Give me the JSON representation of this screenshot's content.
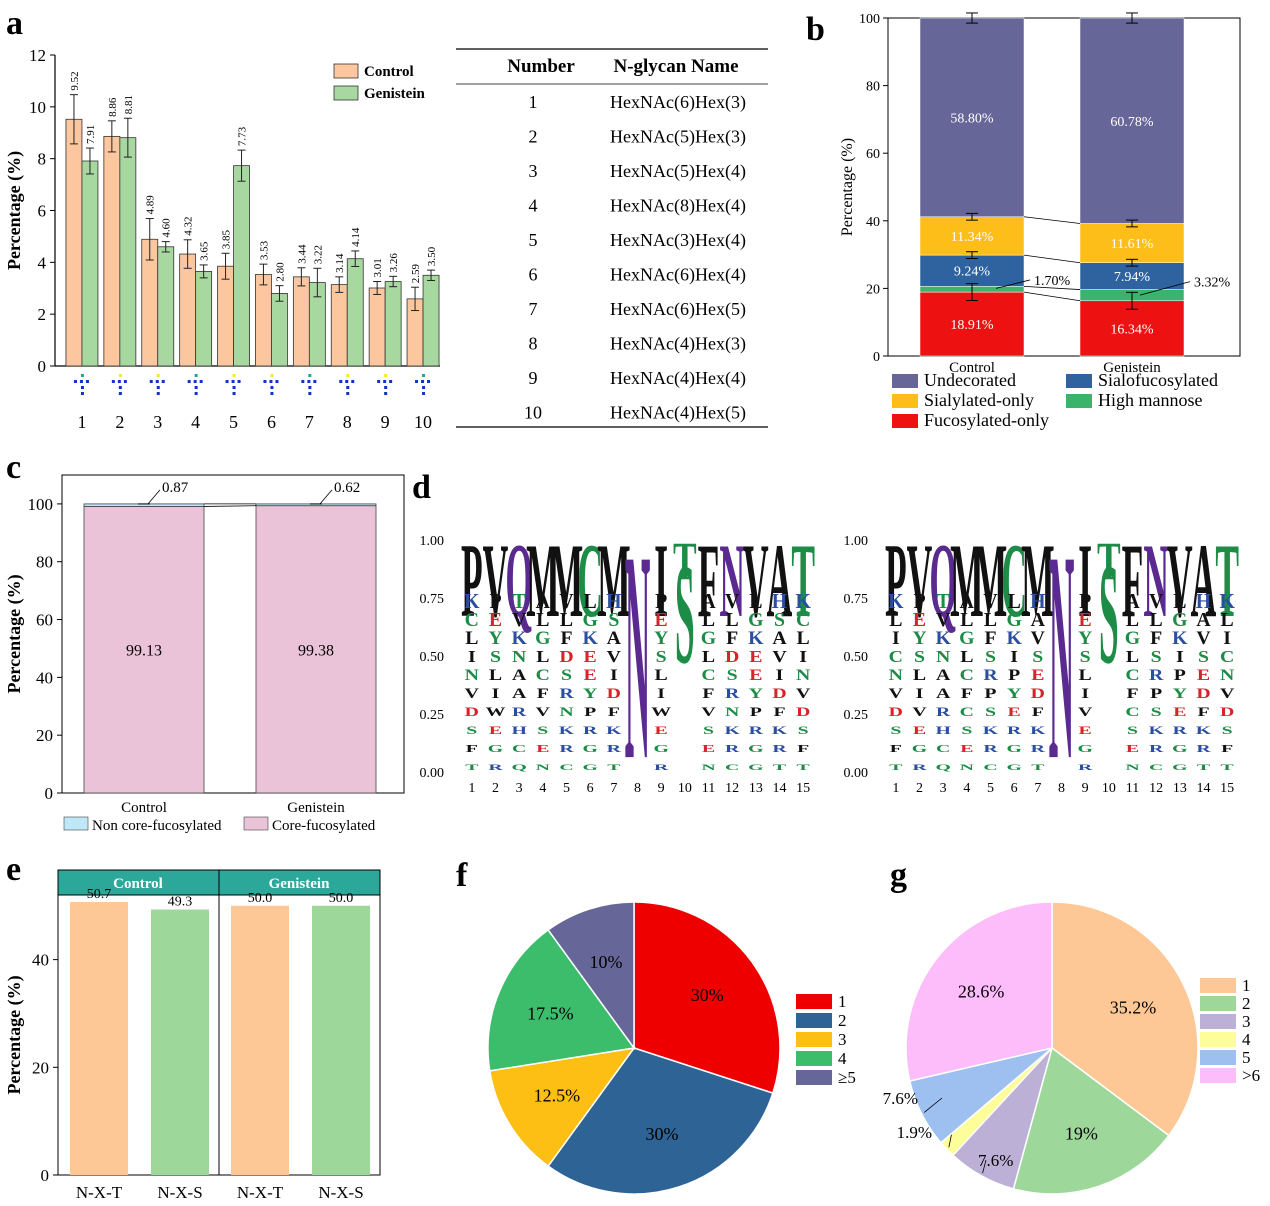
{
  "panel_letters": [
    "a",
    "b",
    "c",
    "d",
    "e",
    "f",
    "g"
  ],
  "chart_data": [
    {
      "id": "a",
      "type": "bar",
      "title": "",
      "ylabel": "Percentage (%)",
      "xlabel": "",
      "ylim": [
        0,
        12
      ],
      "yticks": [
        0,
        2,
        4,
        6,
        8,
        10,
        12
      ],
      "categories": [
        "1",
        "2",
        "3",
        "4",
        "5",
        "6",
        "7",
        "8",
        "9",
        "10"
      ],
      "series": [
        {
          "name": "Control",
          "color": "#FCC79E",
          "values": [
            9.52,
            8.86,
            4.89,
            4.32,
            3.85,
            3.53,
            3.44,
            3.14,
            3.01,
            2.59
          ],
          "labels": [
            "9.52",
            "8.86",
            "4.89",
            "4.32",
            "3.85",
            "3.53",
            "3.44",
            "3.14",
            "3.01",
            "2.59"
          ],
          "errors": [
            0.95,
            0.6,
            0.8,
            0.55,
            0.5,
            0.4,
            0.35,
            0.3,
            0.25,
            0.45
          ]
        },
        {
          "name": "Genistein",
          "color": "#A7D8A0",
          "values": [
            7.91,
            8.81,
            4.6,
            3.65,
            7.73,
            2.8,
            3.22,
            4.14,
            3.26,
            3.5
          ],
          "labels": [
            "7.91",
            "8.81",
            "4.60",
            "3.65",
            "7.73",
            "2.80",
            "3.22",
            "4.14",
            "3.26",
            "3.50"
          ],
          "errors": [
            0.5,
            0.75,
            0.2,
            0.25,
            0.6,
            0.3,
            0.55,
            0.3,
            0.2,
            0.2
          ]
        }
      ],
      "legend": "top-right"
    },
    {
      "id": "b",
      "type": "bar",
      "stacked": true,
      "title": "",
      "ylabel": "Percentage (%)",
      "ylim": [
        0,
        100
      ],
      "yticks": [
        0,
        20,
        40,
        60,
        80,
        100
      ],
      "categories": [
        "Control",
        "Genistein"
      ],
      "series": [
        {
          "name": "Fucosylated-only",
          "color": "#EE1111",
          "values": [
            18.91,
            16.34
          ],
          "labels": [
            "18.91%",
            "16.34%"
          ]
        },
        {
          "name": "High mannose",
          "color": "#3BB36A",
          "values": [
            1.7,
            3.32
          ],
          "labels": [
            "1.70%",
            "3.32%"
          ]
        },
        {
          "name": "Sialofucosylated",
          "color": "#2E63A0",
          "values": [
            9.24,
            7.94
          ],
          "labels": [
            "9.24%",
            "7.94%"
          ]
        },
        {
          "name": "Sialylated-only",
          "color": "#FDBE1A",
          "values": [
            11.34,
            11.61
          ],
          "labels": [
            "11.34%",
            "11.61%"
          ]
        },
        {
          "name": "Undecorated",
          "color": "#676699",
          "values": [
            58.8,
            60.78
          ],
          "labels": [
            "58.80%",
            "60.78%"
          ]
        }
      ],
      "legend_order": [
        "Undecorated",
        "Sialofucosylated",
        "Sialylated-only",
        "High mannose",
        "Fucosylated-only"
      ],
      "legend": "bottom"
    },
    {
      "id": "c",
      "type": "bar",
      "stacked": true,
      "title": "",
      "ylabel": "Percentage (%)",
      "ylim": [
        0,
        110
      ],
      "yticks": [
        0,
        20,
        40,
        60,
        80,
        100
      ],
      "categories": [
        "Control",
        "Genistein"
      ],
      "series": [
        {
          "name": "Core-fucosylated",
          "color": "#EBC3D8",
          "values": [
            99.13,
            99.38
          ],
          "labels": [
            "99.13",
            "99.38"
          ]
        },
        {
          "name": "Non core-fucosylated",
          "color": "#BEE7F7",
          "values": [
            0.87,
            0.62
          ],
          "labels": [
            "0.87",
            "0.62"
          ]
        }
      ],
      "legend": "bottom"
    },
    {
      "id": "e",
      "type": "bar",
      "title": "",
      "ylabel": "Percentage (%)",
      "ylim": [
        0,
        52
      ],
      "yticks": [
        0,
        20,
        40
      ],
      "groups": [
        "Control",
        "Genistein"
      ],
      "categories": [
        "N-X-T",
        "N-X-S",
        "N-X-T",
        "N-X-S"
      ],
      "values": [
        50.7,
        49.3,
        50.0,
        50.0
      ],
      "labels": [
        "50.7",
        "49.3",
        "50.0",
        "50.0"
      ],
      "colors": [
        "#FDC896",
        "#9DD89A",
        "#FDC896",
        "#9DD89A"
      ],
      "header_color": "#2BA89A"
    },
    {
      "id": "f",
      "type": "pie",
      "categories": [
        "1",
        "2",
        "3",
        "4",
        "≥5"
      ],
      "values": [
        30,
        30,
        12.5,
        17.5,
        10
      ],
      "labels": [
        "30%",
        "30%",
        "12.5%",
        "17.5%",
        "10%"
      ],
      "colors": [
        "#EE0000",
        "#2E6396",
        "#FDBF14",
        "#3CBD6B",
        "#676699"
      ],
      "legend": "right"
    },
    {
      "id": "g",
      "type": "pie",
      "categories": [
        "1",
        "2",
        "3",
        "4",
        "5",
        ">6"
      ],
      "values": [
        35.2,
        19,
        7.6,
        1.9,
        7.6,
        28.6
      ],
      "labels": [
        "35.2%",
        "19%",
        "7.6%",
        "1.9%",
        "7.6%",
        "28.6%"
      ],
      "colors": [
        "#FDC896",
        "#9DD89A",
        "#BDB0D6",
        "#FDFD99",
        "#9DC0F0",
        "#FDBDFB"
      ],
      "legend": "right"
    }
  ],
  "glycan_table": {
    "headers": [
      "Number",
      "N-glycan Name"
    ],
    "rows": [
      [
        "1",
        "HexNAc(6)Hex(3)"
      ],
      [
        "2",
        "HexNAc(5)Hex(3)"
      ],
      [
        "3",
        "HexNAc(5)Hex(4)"
      ],
      [
        "4",
        "HexNAc(8)Hex(4)"
      ],
      [
        "5",
        "HexNAc(3)Hex(4)"
      ],
      [
        "6",
        "HexNAc(6)Hex(4)"
      ],
      [
        "7",
        "HexNAc(6)Hex(5)"
      ],
      [
        "8",
        "HexNAc(4)Hex(3)"
      ],
      [
        "9",
        "HexNAc(4)Hex(4)"
      ],
      [
        "10",
        "HexNAc(4)Hex(5)"
      ]
    ]
  },
  "sequence_logos": {
    "yticks": [
      "1.00",
      "0.75",
      "0.50",
      "0.25",
      "0.00"
    ],
    "positions": [
      "1",
      "2",
      "3",
      "4",
      "5",
      "6",
      "7",
      "8",
      "9",
      "10",
      "11",
      "12",
      "13",
      "14",
      "15"
    ],
    "logo1": {
      "top": [
        "P",
        "V",
        "Q",
        "M",
        "M",
        "C",
        "M",
        "N",
        "I",
        "T",
        "F",
        "N",
        "V",
        "A",
        "T"
      ],
      "stack": [
        "KPTAVLH",
        "CEVLLGS",
        "LYKGFKA",
        "ISNLDEV",
        "NLACSEI",
        "VIAFRYD",
        "DWRVNPF",
        "SEHSKRK",
        "FGCERGR",
        "TRQNCGT"
      ]
    },
    "logo2": {
      "top": [
        "P",
        "V",
        "Q",
        "M",
        "M",
        "C",
        "M",
        "N",
        "I",
        "T",
        "F",
        "N",
        "V",
        "A",
        "T"
      ],
      "stack": [
        "KPTAVLH",
        "LEVLLGA",
        "IYKGFKV",
        "CSNLSIS",
        "NLACRPE",
        "VIAFPYD",
        "DVRCSEF",
        "SEHSKRK",
        "FGCERGR",
        "TRQNCGT"
      ]
    }
  },
  "colors": {
    "axis": "#000000"
  }
}
